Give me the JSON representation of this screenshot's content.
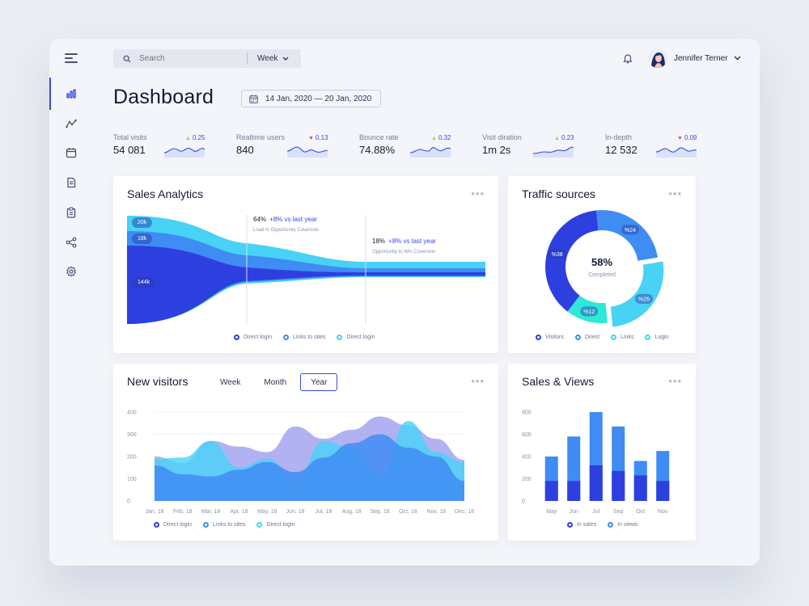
{
  "sidebar": {
    "items": [
      {
        "name": "analytics",
        "active": true
      },
      {
        "name": "trends"
      },
      {
        "name": "calendar"
      },
      {
        "name": "documents"
      },
      {
        "name": "clipboard"
      },
      {
        "name": "share"
      },
      {
        "name": "settings"
      }
    ]
  },
  "header": {
    "search_placeholder": "Search",
    "period": "Week",
    "user_name": "Jennifer Terner"
  },
  "page": {
    "title": "Dashboard",
    "date_range": "14 Jan, 2020 — 20 Jan, 2020"
  },
  "kpis": [
    {
      "label": "Total visits",
      "value": "54 081",
      "delta": "0.25",
      "trend": "up"
    },
    {
      "label": "Realtime users",
      "value": "840",
      "delta": "0.13",
      "trend": "down"
    },
    {
      "label": "Bounce rate",
      "value": "74.88%",
      "delta": "0.32",
      "trend": "up"
    },
    {
      "label": "Visit diration",
      "value": "1m 2s",
      "delta": "0.23",
      "trend": "up"
    },
    {
      "label": "In-depth",
      "value": "12 532",
      "delta": "0.09",
      "trend": "down"
    }
  ],
  "sales_analytics": {
    "title": "Sales Analytics",
    "more": "•••",
    "pills": [
      "20k",
      "18k",
      "144k"
    ],
    "note1": {
      "pct": "64%",
      "change": "+8% vs last year",
      "caption": "Load to Opportunity Coversion"
    },
    "note2": {
      "pct": "18%",
      "change": "+8% vs last year",
      "caption": "Opportunity to Win Coversion"
    },
    "legend": [
      "Direct login",
      "Links to sites",
      "Direct login"
    ]
  },
  "traffic_sources": {
    "title": "Traffic sources",
    "more": "•••",
    "center_value": "58%",
    "center_label": "Completed",
    "segments": [
      {
        "label": "%24",
        "value": 24,
        "color": "#3f8cf4"
      },
      {
        "label": "%26",
        "value": 26,
        "color": "#47d2f6"
      },
      {
        "label": "%12",
        "value": 12,
        "color": "#2ee8d8"
      },
      {
        "label": "%38",
        "value": 38,
        "color": "#2e3fe0"
      }
    ],
    "legend": [
      "Visitors",
      "Direct",
      "Links",
      "Login"
    ]
  },
  "new_visitors": {
    "title": "New visitors",
    "more": "•••",
    "tabs": [
      "Week",
      "Month",
      "Year"
    ],
    "active_tab": "Year",
    "legend": [
      "Direct login",
      "Links to sites",
      "Direct login"
    ]
  },
  "sales_views": {
    "title": "Sales & Views",
    "more": "•••",
    "legend": [
      "In sales",
      "In views"
    ]
  },
  "colors": {
    "accent": "#3a4ae0",
    "blue_dark": "#2e3fe0",
    "blue_mid": "#3f8cf4",
    "cyan": "#47d2f6",
    "teal": "#2ee8d8"
  },
  "chart_data": [
    {
      "type": "area",
      "title": "New visitors",
      "x": [
        "Jan, 18",
        "Feb, 18",
        "Mar, 18",
        "Apr, 18",
        "May, 18",
        "Jun, 18",
        "Jul, 18",
        "Aug, 18",
        "Sep, 18",
        "Oct, 18",
        "Nov, 18",
        "Dec, 18"
      ],
      "ylim": [
        0,
        400
      ],
      "yticks": [
        0,
        100,
        200,
        300,
        400
      ],
      "series": [
        {
          "values": [
            200,
            170,
            270,
            245,
            220,
            335,
            280,
            320,
            380,
            340,
            280,
            185
          ],
          "color": "#9f9fef"
        },
        {
          "values": [
            190,
            195,
            270,
            150,
            190,
            90,
            270,
            240,
            120,
            360,
            220,
            175
          ],
          "color": "#47d2f6"
        },
        {
          "values": [
            160,
            120,
            110,
            140,
            175,
            130,
            195,
            260,
            300,
            240,
            200,
            90
          ],
          "color": "#3f8cf4"
        }
      ]
    },
    {
      "type": "bar",
      "title": "Sales & Views",
      "categories": [
        "May",
        "Jun",
        "Jul",
        "Sep",
        "Oct",
        "Nov"
      ],
      "ylim": [
        0,
        800
      ],
      "yticks": [
        0,
        200,
        400,
        600,
        800
      ],
      "series": [
        {
          "name": "In sales",
          "values": [
            180,
            180,
            320,
            270,
            230,
            180
          ],
          "color": "#2e3fe0"
        },
        {
          "name": "In views",
          "values": [
            400,
            580,
            800,
            670,
            360,
            450
          ],
          "color": "#3f8cf4"
        }
      ]
    },
    {
      "type": "pie",
      "title": "Traffic sources",
      "categories": [
        "%24",
        "%26",
        "%12",
        "%38"
      ],
      "values": [
        24,
        26,
        12,
        38
      ]
    }
  ]
}
